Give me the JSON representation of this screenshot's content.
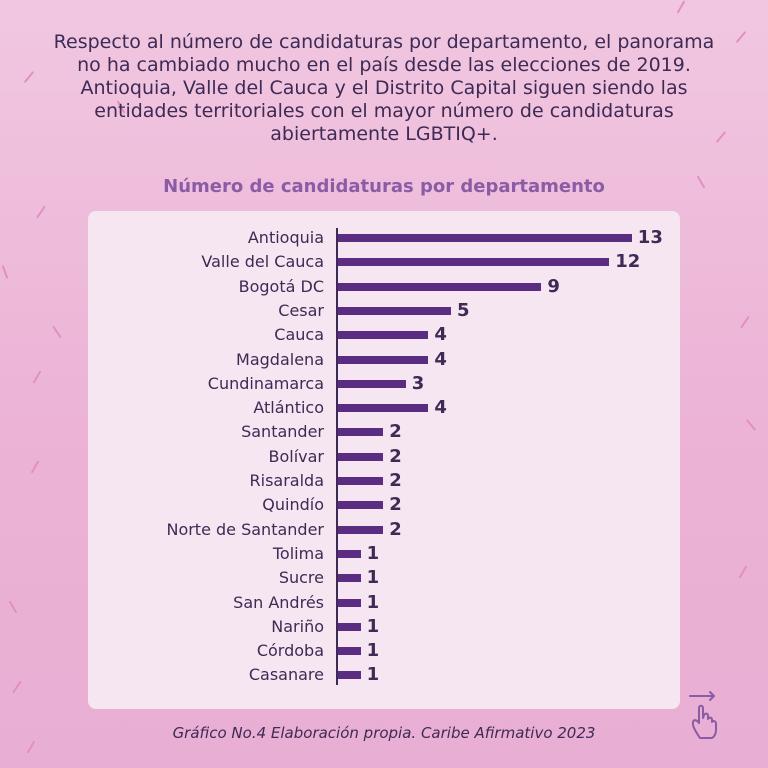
{
  "intro_text": "Respecto al número de candidaturas por departamento, el panorama no ha cambiado mucho en el país desde las elecciones de 2019. Antioquia, Valle del Cauca y el Distrito Capital siguen siendo las entidades territoriales con el mayor número de candidaturas abiertamente LGBTIQ+.",
  "footer_text": "Gráfico No.4 Elaboración propia. Caribe Afirmativo 2023",
  "colors": {
    "background": "#ecb3d6",
    "panel": "#f6e6f2",
    "bar": "#5b2d82",
    "text": "#3d2a55",
    "title": "#8a5ca5"
  },
  "icons": {
    "corner": "swipe-hand-icon"
  },
  "chart_data": {
    "type": "bar",
    "orientation": "horizontal",
    "title": "Número de candidaturas por departamento",
    "categories": [
      "Antioquia",
      "Valle del Cauca",
      "Bogotá DC",
      "Cesar",
      "Cauca",
      "Magdalena",
      "Cundinamarca",
      "Atlántico",
      "Santander",
      "Bolívar",
      "Risaralda",
      "Quindío",
      "Norte de Santander",
      "Tolima",
      "Sucre",
      "San Andrés",
      "Nariño",
      "Córdoba",
      "Casanare"
    ],
    "values": [
      13,
      12,
      9,
      5,
      4,
      4,
      3,
      4,
      2,
      2,
      2,
      2,
      2,
      1,
      1,
      1,
      1,
      1,
      1
    ],
    "value_labels_shown": true,
    "grid": false
  }
}
